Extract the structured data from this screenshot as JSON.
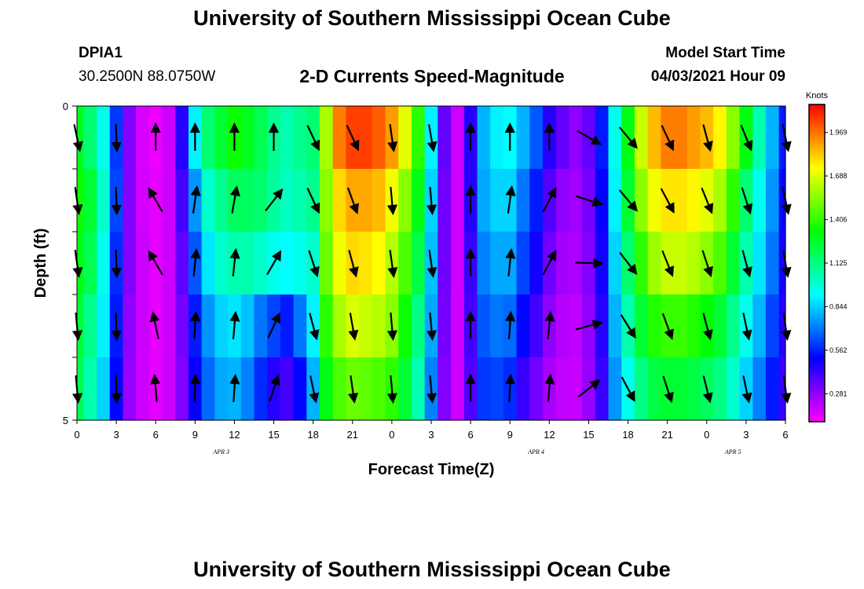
{
  "page": {
    "title_top": "University of Southern Mississippi Ocean Cube",
    "title_bottom": "University of Southern Mississippi Ocean Cube",
    "station_id": "DPIA1",
    "station_coords": "30.2500N  88.0750W",
    "plot_title": "2-D Currents Speed-Magnitude",
    "model_label": "Model Start Time",
    "model_time": "04/03/2021 Hour 09"
  },
  "chart_data": {
    "type": "heatmap",
    "title": "2-D Currents Speed-Magnitude",
    "xlabel": "Forecast Time(Z)",
    "ylabel": "Depth (ft)",
    "x_tick_labels": [
      "0",
      "3",
      "6",
      "9",
      "12",
      "15",
      "18",
      "21",
      "0",
      "3",
      "6",
      "9",
      "12",
      "15",
      "18",
      "21",
      "0",
      "3",
      "6"
    ],
    "date_labels": [
      {
        "text": "APR 3",
        "hour": 11
      },
      {
        "text": "APR 4",
        "hour": 35
      },
      {
        "text": "APR 5",
        "hour": 50
      }
    ],
    "y_tick_labels": [
      "0",
      "",
      "",
      "",
      "",
      "5"
    ],
    "ylim": [
      0,
      5
    ],
    "colorbar": {
      "title": "Knots",
      "ticks": [
        "0.281",
        "0.562",
        "0.844",
        "1.125",
        "1.406",
        "1.688",
        "1.969"
      ],
      "tick_values": [
        0.281,
        0.562,
        0.844,
        1.125,
        1.406,
        1.688,
        1.969
      ],
      "min": 0.1,
      "max": 2.15
    },
    "hours": [
      0,
      1,
      2,
      3,
      4,
      5,
      6,
      7,
      8,
      9,
      10,
      11,
      12,
      13,
      14,
      15,
      16,
      17,
      18,
      19,
      20,
      21,
      22,
      23,
      24,
      25,
      26,
      27,
      28,
      29,
      30,
      31,
      32,
      33,
      34,
      35,
      36,
      37,
      38,
      39,
      40,
      41,
      42,
      43,
      44,
      45,
      46,
      47,
      48,
      49,
      50,
      51,
      52,
      53,
      54
    ],
    "depth_layers": [
      0,
      1,
      2,
      3,
      4
    ],
    "speed": [
      [
        1.28,
        1.15,
        0.95,
        0.6,
        0.3,
        0.16,
        0.13,
        0.18,
        0.45,
        0.9,
        1.15,
        1.25,
        1.35,
        1.28,
        1.2,
        1.1,
        1.05,
        1.1,
        1.15,
        1.6,
        1.95,
        2.05,
        2.05,
        2.0,
        1.9,
        1.7,
        1.4,
        0.9,
        0.35,
        0.18,
        0.45,
        0.8,
        0.9,
        0.92,
        0.8,
        0.65,
        0.45,
        0.35,
        0.28,
        0.35,
        0.55,
        0.95,
        1.3,
        1.65,
        1.85,
        1.95,
        1.95,
        1.9,
        1.85,
        1.75,
        1.55,
        1.3,
        1.05,
        0.8,
        0.55
      ],
      [
        1.35,
        1.25,
        1.0,
        0.62,
        0.3,
        0.17,
        0.14,
        0.18,
        0.4,
        0.75,
        1.0,
        1.1,
        1.18,
        1.18,
        1.15,
        1.08,
        1.02,
        1.05,
        1.1,
        1.55,
        1.8,
        1.88,
        1.88,
        1.85,
        1.72,
        1.55,
        1.3,
        0.85,
        0.33,
        0.18,
        0.45,
        0.78,
        0.85,
        0.85,
        0.7,
        0.55,
        0.38,
        0.28,
        0.25,
        0.32,
        0.5,
        0.9,
        1.25,
        1.55,
        1.72,
        1.78,
        1.78,
        1.75,
        1.7,
        1.6,
        1.4,
        1.15,
        0.95,
        0.75,
        0.52
      ],
      [
        1.3,
        1.2,
        0.95,
        0.58,
        0.3,
        0.18,
        0.14,
        0.18,
        0.36,
        0.65,
        0.88,
        1.0,
        1.05,
        1.05,
        1.0,
        0.95,
        0.92,
        0.95,
        1.0,
        1.5,
        1.72,
        1.8,
        1.78,
        1.74,
        1.62,
        1.45,
        1.22,
        0.82,
        0.33,
        0.18,
        0.42,
        0.72,
        0.78,
        0.78,
        0.62,
        0.48,
        0.33,
        0.25,
        0.23,
        0.3,
        0.48,
        0.85,
        1.15,
        1.4,
        1.58,
        1.65,
        1.65,
        1.62,
        1.55,
        1.45,
        1.25,
        1.05,
        0.88,
        0.7,
        0.48
      ],
      [
        1.25,
        1.1,
        0.9,
        0.55,
        0.28,
        0.18,
        0.14,
        0.18,
        0.32,
        0.55,
        0.75,
        0.85,
        0.88,
        0.82,
        0.7,
        0.62,
        0.55,
        0.7,
        0.9,
        1.4,
        1.6,
        1.68,
        1.65,
        1.62,
        1.55,
        1.35,
        1.12,
        0.78,
        0.32,
        0.18,
        0.4,
        0.65,
        0.7,
        0.68,
        0.52,
        0.4,
        0.28,
        0.22,
        0.2,
        0.28,
        0.45,
        0.8,
        1.05,
        1.25,
        1.38,
        1.42,
        1.42,
        1.38,
        1.32,
        1.25,
        1.1,
        0.95,
        0.8,
        0.62,
        0.45
      ],
      [
        1.2,
        1.05,
        0.85,
        0.52,
        0.27,
        0.18,
        0.14,
        0.18,
        0.3,
        0.5,
        0.68,
        0.78,
        0.8,
        0.72,
        0.58,
        0.45,
        0.4,
        0.52,
        0.8,
        1.3,
        1.45,
        1.5,
        1.48,
        1.45,
        1.4,
        1.25,
        1.05,
        0.72,
        0.3,
        0.18,
        0.38,
        0.6,
        0.62,
        0.58,
        0.42,
        0.32,
        0.24,
        0.2,
        0.19,
        0.27,
        0.42,
        0.75,
        0.95,
        1.12,
        1.22,
        1.25,
        1.25,
        1.22,
        1.18,
        1.12,
        1.0,
        0.85,
        0.72,
        0.55,
        0.42
      ]
    ],
    "vectors": [
      {
        "depth": 0,
        "dirs": [
          {
            "hour": 0,
            "angle": 168
          },
          {
            "hour": 3,
            "angle": 178
          },
          {
            "hour": 6,
            "angle": 0
          },
          {
            "hour": 9,
            "angle": 0
          },
          {
            "hour": 12,
            "angle": 0
          },
          {
            "hour": 15,
            "angle": 0
          },
          {
            "hour": 18,
            "angle": 155
          },
          {
            "hour": 21,
            "angle": 155
          },
          {
            "hour": 24,
            "angle": 172
          },
          {
            "hour": 27,
            "angle": 170
          },
          {
            "hour": 30,
            "angle": 0
          },
          {
            "hour": 33,
            "angle": 0
          },
          {
            "hour": 36,
            "angle": 0
          },
          {
            "hour": 39,
            "angle": 120
          },
          {
            "hour": 42,
            "angle": 140
          },
          {
            "hour": 45,
            "angle": 155
          },
          {
            "hour": 48,
            "angle": 165
          },
          {
            "hour": 51,
            "angle": 158
          },
          {
            "hour": 54,
            "angle": 168
          }
        ]
      },
      {
        "depth": 1,
        "dirs": [
          {
            "hour": 0,
            "angle": 172
          },
          {
            "hour": 3,
            "angle": 178
          },
          {
            "hour": 6,
            "angle": -30
          },
          {
            "hour": 9,
            "angle": 8
          },
          {
            "hour": 12,
            "angle": 10
          },
          {
            "hour": 15,
            "angle": 38
          },
          {
            "hour": 18,
            "angle": 155
          },
          {
            "hour": 21,
            "angle": 160
          },
          {
            "hour": 24,
            "angle": 175
          },
          {
            "hour": 27,
            "angle": 175
          },
          {
            "hour": 30,
            "angle": 0
          },
          {
            "hour": 33,
            "angle": 8
          },
          {
            "hour": 36,
            "angle": 28
          },
          {
            "hour": 39,
            "angle": 108
          },
          {
            "hour": 42,
            "angle": 140
          },
          {
            "hour": 45,
            "angle": 152
          },
          {
            "hour": 48,
            "angle": 158
          },
          {
            "hour": 51,
            "angle": 162
          },
          {
            "hour": 54,
            "angle": 168
          }
        ]
      },
      {
        "depth": 2,
        "dirs": [
          {
            "hour": 0,
            "angle": 172
          },
          {
            "hour": 3,
            "angle": 178
          },
          {
            "hour": 6,
            "angle": -30
          },
          {
            "hour": 9,
            "angle": 6
          },
          {
            "hour": 12,
            "angle": 6
          },
          {
            "hour": 15,
            "angle": 30
          },
          {
            "hour": 18,
            "angle": 162
          },
          {
            "hour": 21,
            "angle": 165
          },
          {
            "hour": 24,
            "angle": 172
          },
          {
            "hour": 27,
            "angle": 172
          },
          {
            "hour": 30,
            "angle": 0
          },
          {
            "hour": 33,
            "angle": 6
          },
          {
            "hour": 36,
            "angle": 28
          },
          {
            "hour": 39,
            "angle": 92
          },
          {
            "hour": 42,
            "angle": 142
          },
          {
            "hour": 45,
            "angle": 158
          },
          {
            "hour": 48,
            "angle": 162
          },
          {
            "hour": 51,
            "angle": 165
          },
          {
            "hour": 54,
            "angle": 170
          }
        ]
      },
      {
        "depth": 3,
        "dirs": [
          {
            "hour": 0,
            "angle": 175
          },
          {
            "hour": 3,
            "angle": 178
          },
          {
            "hour": 6,
            "angle": -12
          },
          {
            "hour": 9,
            "angle": 4
          },
          {
            "hour": 12,
            "angle": 5
          },
          {
            "hour": 15,
            "angle": 25
          },
          {
            "hour": 18,
            "angle": 165
          },
          {
            "hour": 21,
            "angle": 170
          },
          {
            "hour": 24,
            "angle": 175
          },
          {
            "hour": 27,
            "angle": 175
          },
          {
            "hour": 30,
            "angle": 0
          },
          {
            "hour": 33,
            "angle": 4
          },
          {
            "hour": 36,
            "angle": 6
          },
          {
            "hour": 39,
            "angle": 75
          },
          {
            "hour": 42,
            "angle": 148
          },
          {
            "hour": 45,
            "angle": 160
          },
          {
            "hour": 48,
            "angle": 165
          },
          {
            "hour": 51,
            "angle": 168
          },
          {
            "hour": 54,
            "angle": 172
          }
        ]
      },
      {
        "depth": 4,
        "dirs": [
          {
            "hour": 0,
            "angle": 175
          },
          {
            "hour": 3,
            "angle": 178
          },
          {
            "hour": 6,
            "angle": -5
          },
          {
            "hour": 9,
            "angle": 2
          },
          {
            "hour": 12,
            "angle": 4
          },
          {
            "hour": 15,
            "angle": 18
          },
          {
            "hour": 18,
            "angle": 168
          },
          {
            "hour": 21,
            "angle": 172
          },
          {
            "hour": 24,
            "angle": 175
          },
          {
            "hour": 27,
            "angle": 175
          },
          {
            "hour": 30,
            "angle": 0
          },
          {
            "hour": 33,
            "angle": 3
          },
          {
            "hour": 36,
            "angle": 5
          },
          {
            "hour": 39,
            "angle": 52
          },
          {
            "hour": 42,
            "angle": 152
          },
          {
            "hour": 45,
            "angle": 162
          },
          {
            "hour": 48,
            "angle": 166
          },
          {
            "hour": 51,
            "angle": 168
          },
          {
            "hour": 54,
            "angle": 172
          }
        ]
      }
    ]
  }
}
